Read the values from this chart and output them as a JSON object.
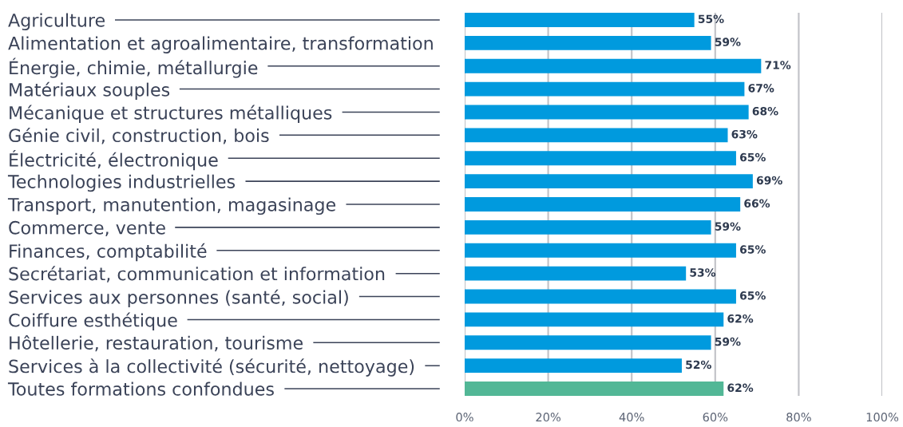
{
  "chart_data": {
    "type": "bar",
    "orientation": "horizontal",
    "categories": [
      "Agriculture",
      "Alimentation et agroalimentaire, transformation",
      "Énergie, chimie, métallurgie",
      "Matériaux souples",
      "Mécanique et structures métalliques",
      "Génie civil, construction, bois",
      "Électricité, électronique",
      "Technologies industrielles",
      "Transport, manutention, magasinage",
      "Commerce, vente",
      "Finances, comptabilité",
      "Secrétariat, communication et information",
      "Services aux personnes (santé, social)",
      "Coiffure esthétique",
      "Hôtellerie, restauration, tourisme",
      "Services à la collectivité (sécurité, nettoyage)",
      "Toutes formations confondues"
    ],
    "values": [
      55,
      59,
      71,
      67,
      68,
      63,
      65,
      69,
      66,
      59,
      65,
      53,
      65,
      62,
      59,
      52,
      62
    ],
    "colors": [
      "#009ade",
      "#009ade",
      "#009ade",
      "#009ade",
      "#009ade",
      "#009ade",
      "#009ade",
      "#009ade",
      "#009ade",
      "#009ade",
      "#009ade",
      "#009ade",
      "#009ade",
      "#009ade",
      "#009ade",
      "#009ade",
      "#52b796"
    ],
    "value_labels": [
      "55%",
      "59%",
      "71%",
      "67%",
      "68%",
      "63%",
      "65%",
      "69%",
      "66%",
      "59%",
      "65%",
      "53%",
      "65%",
      "62%",
      "59%",
      "52%",
      "62%"
    ],
    "xlim": [
      0,
      100
    ],
    "xticks": [
      {
        "value": 0,
        "label": "0%"
      },
      {
        "value": 20,
        "label": "20%"
      },
      {
        "value": 40,
        "label": "40%"
      },
      {
        "value": 60,
        "label": "60%"
      },
      {
        "value": 80,
        "label": "80%"
      },
      {
        "value": 100,
        "label": "100%"
      }
    ],
    "grid": "x"
  }
}
